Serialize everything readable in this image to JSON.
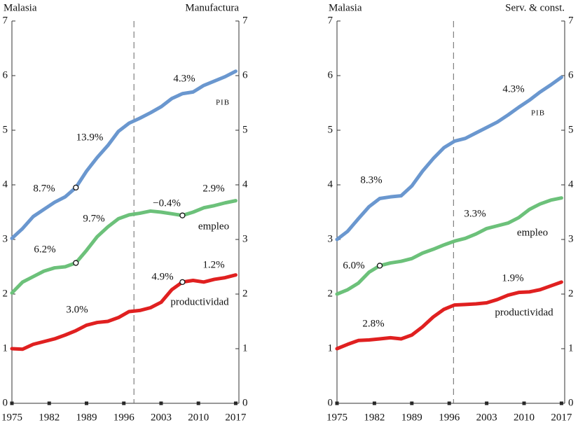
{
  "chart_data": [
    {
      "type": "line",
      "title": "Malasia",
      "subtitle": "Manufactura",
      "x": [
        1975,
        1977,
        1979,
        1981,
        1983,
        1985,
        1987,
        1989,
        1991,
        1993,
        1995,
        1997,
        1999,
        2001,
        2003,
        2005,
        2007,
        2009,
        2011,
        2013,
        2015,
        2017
      ],
      "series": [
        {
          "name": "PIB",
          "color": "#6a97cf",
          "values": [
            3.02,
            3.2,
            3.42,
            3.55,
            3.68,
            3.78,
            3.95,
            4.25,
            4.5,
            4.72,
            4.98,
            5.13,
            5.22,
            5.32,
            5.43,
            5.58,
            5.67,
            5.7,
            5.82,
            5.9,
            5.98,
            6.08
          ]
        },
        {
          "name": "empleo",
          "color": "#6cc17a",
          "values": [
            2.02,
            2.22,
            2.32,
            2.42,
            2.48,
            2.5,
            2.57,
            2.8,
            3.05,
            3.23,
            3.38,
            3.45,
            3.48,
            3.52,
            3.5,
            3.47,
            3.44,
            3.5,
            3.58,
            3.62,
            3.67,
            3.71
          ]
        },
        {
          "name": "productividad",
          "color": "#e02020",
          "values": [
            1.0,
            0.99,
            1.08,
            1.13,
            1.18,
            1.25,
            1.33,
            1.43,
            1.48,
            1.5,
            1.57,
            1.68,
            1.7,
            1.75,
            1.85,
            2.08,
            2.22,
            2.25,
            2.22,
            2.27,
            2.3,
            2.35
          ]
        }
      ],
      "annotations": [
        "8.7%",
        "13.9%",
        "4.3%",
        "6.2%",
        "9.7%",
        "−0.4%",
        "2.9%",
        "3.0%",
        "4.9%",
        "1.2%"
      ],
      "reference_line_x": 1997.9,
      "xlim": [
        1975,
        2017.6
      ],
      "xticks": [
        1975,
        1982,
        1989,
        1996,
        2003,
        2010,
        2017
      ],
      "ylim": [
        0,
        7
      ],
      "yticks": [
        0,
        1,
        2,
        3,
        4,
        5,
        6,
        7
      ]
    },
    {
      "type": "line",
      "title": "Malasia",
      "subtitle": "Serv. & const.",
      "x": [
        1975,
        1977,
        1979,
        1981,
        1983,
        1985,
        1987,
        1989,
        1991,
        1993,
        1995,
        1997,
        1999,
        2001,
        2003,
        2005,
        2007,
        2009,
        2011,
        2013,
        2015,
        2017
      ],
      "series": [
        {
          "name": "PIB",
          "color": "#6a97cf",
          "values": [
            3.0,
            3.15,
            3.38,
            3.6,
            3.75,
            3.78,
            3.8,
            3.98,
            4.25,
            4.48,
            4.68,
            4.8,
            4.85,
            4.95,
            5.05,
            5.15,
            5.28,
            5.42,
            5.55,
            5.7,
            5.83,
            5.97
          ]
        },
        {
          "name": "empleo",
          "color": "#6cc17a",
          "values": [
            2.0,
            2.08,
            2.2,
            2.4,
            2.52,
            2.57,
            2.6,
            2.65,
            2.75,
            2.82,
            2.9,
            2.97,
            3.02,
            3.1,
            3.2,
            3.25,
            3.3,
            3.4,
            3.55,
            3.65,
            3.72,
            3.76
          ]
        },
        {
          "name": "productividad",
          "color": "#e02020",
          "values": [
            1.0,
            1.08,
            1.15,
            1.16,
            1.18,
            1.2,
            1.18,
            1.25,
            1.4,
            1.58,
            1.72,
            1.8,
            1.81,
            1.82,
            1.84,
            1.9,
            1.98,
            2.03,
            2.04,
            2.08,
            2.15,
            2.22
          ]
        }
      ],
      "annotations": [
        "8.3%",
        "4.3%",
        "3.3%",
        "6.0%",
        "2.8%",
        "1.9%"
      ],
      "reference_line_x": 1996.8,
      "xlim": [
        1975,
        2017.6
      ],
      "xticks": [
        1975,
        1982,
        1989,
        1996,
        2003,
        2010,
        2017
      ],
      "ylim": [
        0,
        7
      ],
      "yticks": [
        0,
        1,
        2,
        3,
        4,
        5,
        6,
        7
      ]
    }
  ]
}
